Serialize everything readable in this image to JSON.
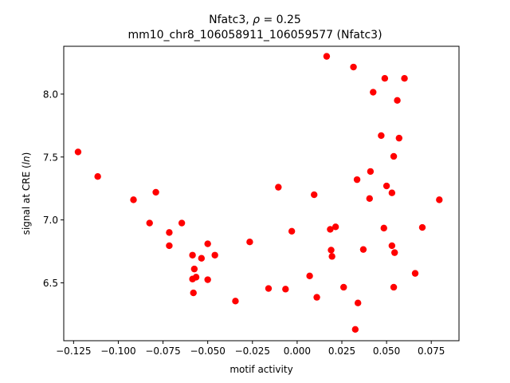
{
  "chart_data": {
    "type": "scatter",
    "title_line1_prefix": "Nfatc3, ",
    "title_line1_rho": "ρ",
    "title_line1_suffix": " = 0.25",
    "title_line2": "mm10_chr8_106058911_106059577 (Nfatc3)",
    "xlabel": "motif activity",
    "ylabel_prefix": "signal at CRE (",
    "ylabel_italic": "ln",
    "ylabel_suffix": ")",
    "xlim": [
      -0.1305,
      0.0905
    ],
    "ylim": [
      6.04,
      8.38
    ],
    "xticks": [
      -0.125,
      -0.1,
      -0.075,
      -0.05,
      -0.025,
      0.0,
      0.025,
      0.05,
      0.075
    ],
    "xtick_labels": [
      "−0.125",
      "−0.100",
      "−0.075",
      "−0.050",
      "−0.025",
      "0.000",
      "0.025",
      "0.050",
      "0.075"
    ],
    "yticks": [
      6.5,
      7.0,
      7.5,
      8.0
    ],
    "ytick_labels": [
      "6.5",
      "7.0",
      "7.5",
      "8.0"
    ],
    "marker_color": "#ff0000",
    "grid": false,
    "legend": "none",
    "points": [
      {
        "x": -0.1225,
        "y": 7.54
      },
      {
        "x": -0.1115,
        "y": 7.345
      },
      {
        "x": -0.0915,
        "y": 7.16
      },
      {
        "x": -0.0825,
        "y": 6.975
      },
      {
        "x": -0.079,
        "y": 7.22
      },
      {
        "x": -0.0715,
        "y": 6.9
      },
      {
        "x": -0.0715,
        "y": 6.795
      },
      {
        "x": -0.0645,
        "y": 6.975
      },
      {
        "x": -0.0585,
        "y": 6.72
      },
      {
        "x": -0.0575,
        "y": 6.61
      },
      {
        "x": -0.0585,
        "y": 6.53
      },
      {
        "x": -0.0565,
        "y": 6.545
      },
      {
        "x": -0.058,
        "y": 6.42
      },
      {
        "x": -0.0535,
        "y": 6.695
      },
      {
        "x": -0.05,
        "y": 6.81
      },
      {
        "x": -0.05,
        "y": 6.525
      },
      {
        "x": -0.046,
        "y": 6.72
      },
      {
        "x": -0.0345,
        "y": 6.355
      },
      {
        "x": -0.0265,
        "y": 6.825
      },
      {
        "x": -0.016,
        "y": 6.455
      },
      {
        "x": -0.0105,
        "y": 7.26
      },
      {
        "x": -0.0065,
        "y": 6.45
      },
      {
        "x": -0.003,
        "y": 6.91
      },
      {
        "x": 0.007,
        "y": 6.555
      },
      {
        "x": 0.0095,
        "y": 7.2
      },
      {
        "x": 0.011,
        "y": 6.385
      },
      {
        "x": 0.0165,
        "y": 8.3
      },
      {
        "x": 0.0185,
        "y": 6.925
      },
      {
        "x": 0.019,
        "y": 6.76
      },
      {
        "x": 0.0195,
        "y": 6.71
      },
      {
        "x": 0.0215,
        "y": 6.945
      },
      {
        "x": 0.026,
        "y": 6.465
      },
      {
        "x": 0.0315,
        "y": 8.215
      },
      {
        "x": 0.0325,
        "y": 6.13
      },
      {
        "x": 0.0335,
        "y": 7.32
      },
      {
        "x": 0.034,
        "y": 6.34
      },
      {
        "x": 0.037,
        "y": 6.765
      },
      {
        "x": 0.0405,
        "y": 7.17
      },
      {
        "x": 0.041,
        "y": 7.385
      },
      {
        "x": 0.0425,
        "y": 8.015
      },
      {
        "x": 0.047,
        "y": 7.67
      },
      {
        "x": 0.0485,
        "y": 6.935
      },
      {
        "x": 0.049,
        "y": 8.125
      },
      {
        "x": 0.05,
        "y": 7.27
      },
      {
        "x": 0.053,
        "y": 7.215
      },
      {
        "x": 0.053,
        "y": 6.795
      },
      {
        "x": 0.054,
        "y": 7.505
      },
      {
        "x": 0.054,
        "y": 6.465
      },
      {
        "x": 0.0545,
        "y": 6.74
      },
      {
        "x": 0.056,
        "y": 7.95
      },
      {
        "x": 0.057,
        "y": 7.65
      },
      {
        "x": 0.06,
        "y": 8.125
      },
      {
        "x": 0.066,
        "y": 6.575
      },
      {
        "x": 0.07,
        "y": 6.94
      },
      {
        "x": 0.0795,
        "y": 7.16
      }
    ]
  }
}
